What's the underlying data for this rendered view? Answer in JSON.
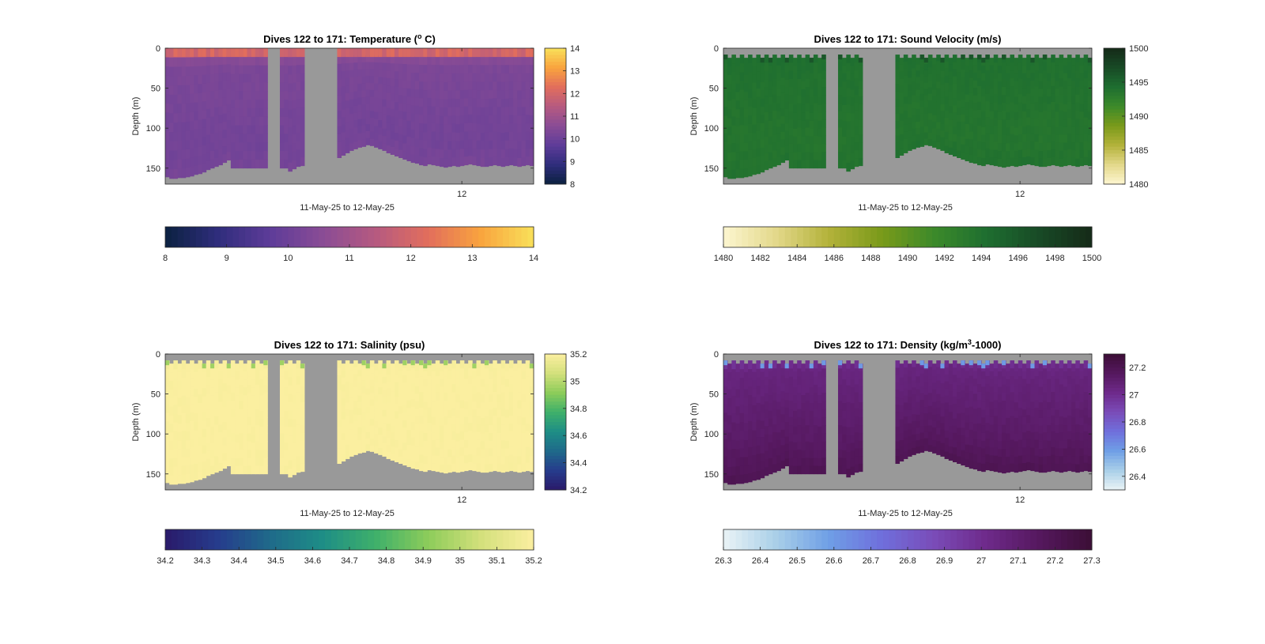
{
  "chart_data": [
    {
      "type": "heatmap",
      "title": "Dives 122 to 171: Temperature (",
      "title_sup": "o",
      "title_tail": " C)",
      "xlabel": "11-May-25 to 12-May-25",
      "ylabel": "Depth (m)",
      "x_tick_labels": [
        "12"
      ],
      "y_ticks": [
        0,
        50,
        100,
        150
      ],
      "y_tick_labels": [
        "0",
        "50",
        "100",
        "150"
      ],
      "ylim": [
        0,
        170
      ],
      "y_reversed": true,
      "colormap": [
        "#0b2140",
        "#2f2d7c",
        "#5e3c99",
        "#8a4c95",
        "#b65a80",
        "#e26e5c",
        "#f9a43e",
        "#f9e15a"
      ],
      "clim": [
        8,
        14
      ],
      "side_colorbar_ticks": [
        8,
        9,
        10,
        11,
        12,
        13,
        14
      ],
      "side_colorbar_labels": [
        "8",
        "9",
        "10",
        "11",
        "12",
        "13",
        "14"
      ],
      "bottom_colorbar_ticks": [
        8,
        9,
        10,
        11,
        12,
        13,
        14
      ],
      "bottom_colorbar_labels": [
        "8",
        "9",
        "10",
        "11",
        "12",
        "13",
        "14"
      ],
      "surface_value": 12.0,
      "deep_value": 10.1,
      "bottom_value": 10.2,
      "mid_value": 10.3,
      "has_surface_cap": false
    },
    {
      "type": "heatmap",
      "title": "Dives 122 to 171: Sound Velocity (m/s)",
      "title_sup": "",
      "title_tail": "",
      "xlabel": "11-May-25 to 12-May-25",
      "ylabel": "Depth (m)",
      "x_tick_labels": [
        "12"
      ],
      "y_ticks": [
        0,
        50,
        100,
        150
      ],
      "y_tick_labels": [
        "0",
        "50",
        "100",
        "150"
      ],
      "ylim": [
        0,
        170
      ],
      "y_reversed": true,
      "colormap": [
        "#fdf6d0",
        "#e3d88a",
        "#b3b23a",
        "#7a9a1a",
        "#3c8a2a",
        "#1e6e30",
        "#184a26",
        "#152a18"
      ],
      "clim": [
        1480,
        1500
      ],
      "side_colorbar_ticks": [
        1480,
        1485,
        1490,
        1495,
        1500
      ],
      "side_colorbar_labels": [
        "1480",
        "1485",
        "1490",
        "1495",
        "1500"
      ],
      "bottom_colorbar_ticks": [
        1480,
        1482,
        1484,
        1486,
        1488,
        1490,
        1492,
        1494,
        1496,
        1498,
        1500
      ],
      "bottom_colorbar_labels": [
        "1480",
        "1482",
        "1484",
        "1486",
        "1488",
        "1490",
        "1492",
        "1494",
        "1496",
        "1498",
        "1500"
      ],
      "surface_value": 1494.8,
      "deep_value": 1493.6,
      "bottom_value": 1493.9,
      "mid_value": 1494.0,
      "has_surface_cap": true
    },
    {
      "type": "heatmap",
      "title": "Dives 122 to 171: Salinity (psu)",
      "title_sup": "",
      "title_tail": "",
      "xlabel": "11-May-25 to 12-May-25",
      "ylabel": "Depth (m)",
      "x_tick_labels": [
        "12"
      ],
      "y_ticks": [
        0,
        50,
        100,
        150
      ],
      "y_tick_labels": [
        "0",
        "50",
        "100",
        "150"
      ],
      "ylim": [
        0,
        170
      ],
      "y_reversed": true,
      "colormap": [
        "#2a1a6a",
        "#263c8c",
        "#1f6a8a",
        "#1e8e86",
        "#3fb06a",
        "#8dcc5a",
        "#d4e07c",
        "#fbefa0"
      ],
      "clim": [
        34.2,
        35.2
      ],
      "side_colorbar_ticks": [
        34.2,
        34.4,
        34.6,
        34.8,
        35,
        35.2
      ],
      "side_colorbar_labels": [
        "34.2",
        "34.4",
        "34.6",
        "34.8",
        "35",
        "35.2"
      ],
      "bottom_colorbar_ticks": [
        34.2,
        34.3,
        34.4,
        34.5,
        34.6,
        34.7,
        34.8,
        34.9,
        35,
        35.1,
        35.2
      ],
      "bottom_colorbar_labels": [
        "34.2",
        "34.3",
        "34.4",
        "34.5",
        "34.6",
        "34.7",
        "34.8",
        "34.9",
        "35",
        "35.1",
        "35.2"
      ],
      "surface_value": 35.16,
      "deep_value": 35.2,
      "bottom_value": 35.2,
      "mid_value": 35.2,
      "has_surface_cap": true
    },
    {
      "type": "heatmap",
      "title": "Dives 122 to 171: Density (kg/m",
      "title_sup": "3",
      "title_tail": "-1000)",
      "xlabel": "11-May-25 to 12-May-25",
      "ylabel": "Depth (m)",
      "x_tick_labels": [
        "12"
      ],
      "y_ticks": [
        0,
        50,
        100,
        150
      ],
      "y_tick_labels": [
        "0",
        "50",
        "100",
        "150"
      ],
      "ylim": [
        0,
        170
      ],
      "y_reversed": true,
      "colormap": [
        "#eaf3f6",
        "#a9cfe8",
        "#6f9fe6",
        "#6f6fdc",
        "#7a4cb8",
        "#6e2a8a",
        "#55185e",
        "#3c0e36"
      ],
      "clim": [
        26.3,
        27.3
      ],
      "side_colorbar_ticks": [
        26.4,
        26.6,
        26.8,
        27,
        27.2
      ],
      "side_colorbar_labels": [
        "26.4",
        "26.6",
        "26.8",
        "27",
        "27.2"
      ],
      "bottom_colorbar_ticks": [
        26.3,
        26.4,
        26.5,
        26.6,
        26.7,
        26.8,
        26.9,
        27,
        27.1,
        27.2,
        27.3
      ],
      "bottom_colorbar_labels": [
        "26.3",
        "26.4",
        "26.5",
        "26.6",
        "26.7",
        "26.8",
        "26.9",
        "27",
        "27.1",
        "27.2",
        "27.3"
      ],
      "surface_value": 26.85,
      "deep_value": 27.15,
      "bottom_value": 27.2,
      "mid_value": 27.05,
      "has_surface_cap": true
    }
  ],
  "profiles": {
    "dive_column_count": 90,
    "max_depth_m": [
      161,
      163,
      163,
      162,
      162,
      161,
      160,
      158,
      157,
      155,
      152,
      150,
      148,
      146,
      143,
      140,
      150,
      150,
      150,
      150,
      150,
      150,
      150,
      150,
      150,
      150,
      150,
      150,
      150,
      150,
      154,
      151,
      148,
      147,
      149,
      151,
      150,
      149,
      147,
      145,
      142,
      139,
      137,
      134,
      131,
      128,
      126,
      124,
      123,
      121,
      122,
      124,
      126,
      128,
      131,
      133,
      135,
      137,
      139,
      141,
      143,
      144,
      146,
      147,
      145,
      146,
      147,
      148,
      149,
      148,
      147,
      148,
      147,
      146,
      145,
      146,
      147,
      148,
      148,
      147,
      146,
      147,
      148,
      147,
      146,
      147,
      148,
      147,
      146,
      147
    ],
    "gaps": [
      [
        25,
        27
      ],
      [
        34,
        41
      ]
    ]
  },
  "gap_color": "#999999"
}
